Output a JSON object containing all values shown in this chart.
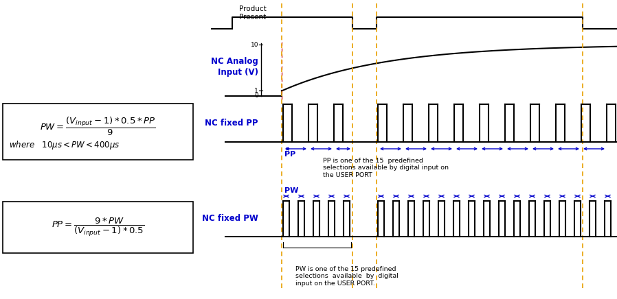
{
  "bg_color": "#ffffff",
  "blue_color": "#0000cc",
  "black_color": "#000000",
  "orange_color": "#E8A000",
  "red_color": "#cc0000",
  "fig_width": 8.98,
  "fig_height": 4.36,
  "label_nc_analog": "NC Analog\nInput (V)",
  "label_nc_pp": "NC fixed PP",
  "label_nc_pw": "NC fixed PW",
  "label_product": "Product\nPresent",
  "label_pp": "PP",
  "label_pw": "PW",
  "note_pp": "PP is one of the 15  predefined\nselections available by digital input on\nthe USER PORT",
  "note_pw": "PW is one of the 15 predefined\nselections  available  by  digital\ninput on the USER PORT."
}
